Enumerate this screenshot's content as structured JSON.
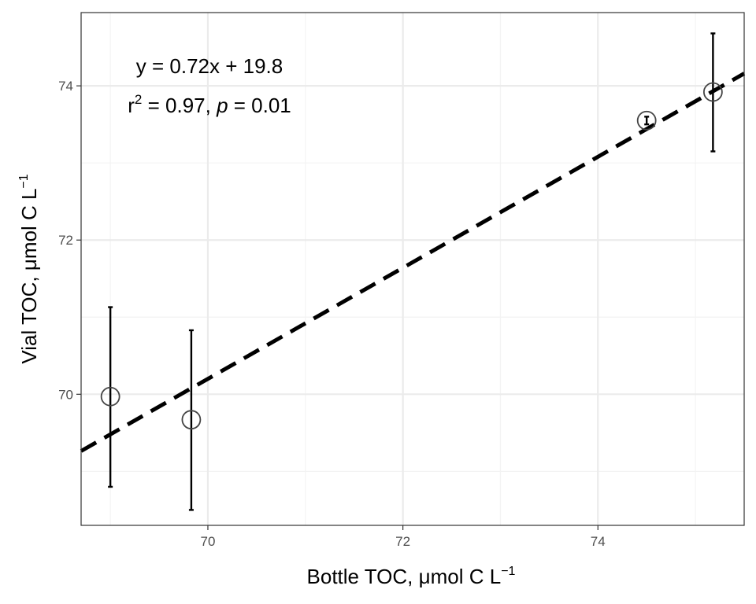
{
  "chart_data": {
    "type": "scatter",
    "xlabel": {
      "main": "Bottle TOC, μmol C L",
      "sup": "−1"
    },
    "ylabel": {
      "main": "Vial TOC, μmol C L",
      "sup": "−1"
    },
    "xlim": [
      68.7,
      75.5
    ],
    "ylim": [
      68.3,
      74.95
    ],
    "x_ticks": [
      70,
      72,
      74
    ],
    "y_ticks": [
      70,
      72,
      74
    ],
    "x_tick_labels": [
      "70",
      "72",
      "74"
    ],
    "y_tick_labels": [
      "70",
      "72",
      "74"
    ],
    "grid": true,
    "points": [
      {
        "x": 69.0,
        "y": 69.97,
        "ymin": 68.8,
        "ymax": 71.13
      },
      {
        "x": 69.83,
        "y": 69.67,
        "ymin": 68.5,
        "ymax": 70.83
      },
      {
        "x": 74.5,
        "y": 73.55,
        "ymin": 73.5,
        "ymax": 73.6
      },
      {
        "x": 75.18,
        "y": 73.92,
        "ymin": 73.15,
        "ymax": 74.68
      }
    ],
    "fit": {
      "slope": 0.72,
      "intercept": 19.8,
      "style": "dashed"
    },
    "annotation": {
      "equation": "y = 0.72x + 19.8",
      "r2_label": "r",
      "r2_sup": "2",
      "r2_value": " = 0.97, ",
      "p_label": "p",
      "p_value": " = 0.01"
    },
    "colors": {
      "point_stroke": "#444444",
      "errorbar": "#000000",
      "fit_line": "#000000",
      "grid_major": "#ebebeb",
      "grid_minor": "#f3f3f3",
      "panel_border": "#333333"
    }
  }
}
